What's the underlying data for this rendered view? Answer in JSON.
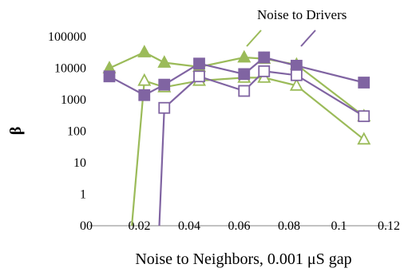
{
  "chart_data": {
    "type": "line",
    "y_scale": "log",
    "xlabel": "Noise to Neighbors, 0.001 μS gap",
    "ylabel": "β",
    "annotation": "Noise to Drivers",
    "xlim": [
      0,
      0.12
    ],
    "ylim": [
      0.1,
      100000
    ],
    "x_ticks": [
      0,
      0.02,
      0.04,
      0.06,
      0.08,
      0.1,
      0.12
    ],
    "x_tick_labels": [
      "0",
      "0.02",
      "0.04",
      "0.06",
      "0.08",
      "0.1",
      "0.12"
    ],
    "y_ticks": [
      0.1,
      1,
      10,
      100,
      1000,
      10000,
      100000
    ],
    "y_tick_labels": [
      "0",
      "1",
      "10",
      "100",
      "1000",
      "10000",
      "100000"
    ],
    "grid": false,
    "colors": {
      "green": "#9bbb59",
      "purple": "#8064a2"
    },
    "series": [
      {
        "color": "#9bbb59",
        "marker": "triangle",
        "filled": true,
        "x": [
          0.008,
          0.022,
          0.03,
          0.044,
          0.062,
          0.07,
          0.083,
          0.11
        ],
        "y": [
          10000,
          32000,
          15000,
          11000,
          22000,
          20000,
          13000,
          300
        ]
      },
      {
        "color": "#9bbb59",
        "marker": "triangle",
        "filled": false,
        "x": [
          0.017,
          0.022,
          0.03,
          0.044,
          0.062,
          0.07,
          0.083,
          0.11
        ],
        "y": [
          0.1,
          4000,
          2500,
          4000,
          5000,
          5000,
          2800,
          55
        ]
      },
      {
        "color": "#8064a2",
        "marker": "square",
        "filled": true,
        "x": [
          0.008,
          0.022,
          0.03,
          0.044,
          0.062,
          0.07,
          0.083,
          0.11
        ],
        "y": [
          5500,
          1400,
          3000,
          14000,
          6500,
          22000,
          12000,
          3500
        ]
      },
      {
        "color": "#8064a2",
        "marker": "square",
        "filled": false,
        "x": [
          0.028,
          0.03,
          0.044,
          0.062,
          0.07,
          0.083,
          0.11
        ],
        "y": [
          0.1,
          550,
          5500,
          1900,
          8000,
          6000,
          300
        ]
      }
    ]
  }
}
